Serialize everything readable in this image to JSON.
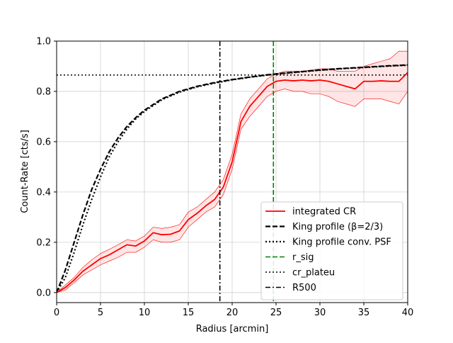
{
  "chart_data": {
    "type": "line",
    "title": "",
    "xlabel": "Radius [arcmin]",
    "ylabel": "Count-Rate [cts/s]",
    "xlim": [
      0,
      40
    ],
    "ylim": [
      -0.04,
      1.0
    ],
    "xticks": [
      0,
      5,
      10,
      15,
      20,
      25,
      30,
      35,
      40
    ],
    "yticks": [
      0.0,
      0.2,
      0.4,
      0.6,
      0.8,
      1.0
    ],
    "xtick_labels": [
      "0",
      "5",
      "10",
      "15",
      "20",
      "25",
      "30",
      "35",
      "40"
    ],
    "ytick_labels": [
      "0.0",
      "0.2",
      "0.4",
      "0.6",
      "0.8",
      "1.0"
    ],
    "grid": true,
    "legend_position": "lower-right",
    "series": [
      {
        "name": "integrated CR",
        "style": "solid",
        "color": "#ff0000",
        "x": [
          0,
          1,
          2,
          3,
          4,
          5,
          6,
          7,
          8,
          9,
          10,
          11,
          12,
          13,
          14,
          15,
          16,
          17,
          18,
          19,
          20,
          21,
          22,
          23,
          24,
          25,
          26,
          27,
          28,
          29,
          30,
          31,
          32,
          33,
          34,
          35,
          36,
          37,
          38,
          39,
          40
        ],
        "y": [
          0.0,
          0.02,
          0.05,
          0.085,
          0.11,
          0.135,
          0.15,
          0.17,
          0.19,
          0.185,
          0.205,
          0.238,
          0.23,
          0.232,
          0.245,
          0.29,
          0.315,
          0.345,
          0.37,
          0.42,
          0.52,
          0.68,
          0.74,
          0.78,
          0.82,
          0.84,
          0.845,
          0.842,
          0.845,
          0.842,
          0.845,
          0.84,
          0.83,
          0.82,
          0.81,
          0.84,
          0.84,
          0.842,
          0.84,
          0.84,
          0.875
        ],
        "y_upper": [
          0.0,
          0.03,
          0.06,
          0.1,
          0.13,
          0.155,
          0.172,
          0.19,
          0.21,
          0.205,
          0.225,
          0.26,
          0.255,
          0.26,
          0.27,
          0.32,
          0.34,
          0.37,
          0.4,
          0.45,
          0.55,
          0.71,
          0.77,
          0.81,
          0.85,
          0.87,
          0.88,
          0.88,
          0.88,
          0.885,
          0.89,
          0.89,
          0.88,
          0.88,
          0.88,
          0.9,
          0.91,
          0.92,
          0.93,
          0.96,
          0.96
        ],
        "y_lower": [
          0.0,
          0.01,
          0.04,
          0.07,
          0.09,
          0.11,
          0.125,
          0.14,
          0.16,
          0.16,
          0.18,
          0.21,
          0.2,
          0.2,
          0.21,
          0.26,
          0.29,
          0.32,
          0.34,
          0.39,
          0.49,
          0.65,
          0.7,
          0.74,
          0.78,
          0.8,
          0.81,
          0.8,
          0.8,
          0.79,
          0.79,
          0.78,
          0.76,
          0.75,
          0.74,
          0.77,
          0.77,
          0.77,
          0.76,
          0.75,
          0.8
        ]
      },
      {
        "name": "King profile (β=2/3)",
        "style": "dashed",
        "color": "#000000",
        "x": [
          0,
          1,
          2,
          3,
          4,
          5,
          6,
          7,
          8,
          9,
          10,
          12,
          14,
          16,
          18,
          20,
          22,
          24,
          26,
          28,
          30,
          32,
          34,
          36,
          38,
          40
        ],
        "y": [
          0.0,
          0.09,
          0.2,
          0.31,
          0.41,
          0.49,
          0.56,
          0.615,
          0.66,
          0.695,
          0.725,
          0.77,
          0.8,
          0.82,
          0.835,
          0.847,
          0.857,
          0.866,
          0.873,
          0.879,
          0.885,
          0.89,
          0.894,
          0.898,
          0.902,
          0.905
        ]
      },
      {
        "name": "King profile conv. PSF",
        "style": "dotted",
        "color": "#000000",
        "x": [
          0,
          1,
          2,
          3,
          4,
          5,
          6,
          7,
          8,
          9,
          10,
          12,
          14,
          16,
          18,
          20,
          22,
          24,
          26,
          28,
          30,
          32,
          34,
          36,
          38,
          40
        ],
        "y": [
          0.0,
          0.06,
          0.16,
          0.27,
          0.37,
          0.46,
          0.54,
          0.6,
          0.65,
          0.69,
          0.72,
          0.767,
          0.797,
          0.818,
          0.833,
          0.846,
          0.856,
          0.865,
          0.872,
          0.878,
          0.884,
          0.889,
          0.893,
          0.897,
          0.901,
          0.904
        ]
      }
    ],
    "vlines": [
      {
        "name": "r_sig",
        "x": 24.7,
        "style": "dashed",
        "color": "#008000"
      },
      {
        "name": "R500",
        "x": 18.6,
        "style": "dashdot",
        "color": "#000000"
      }
    ],
    "hlines": [
      {
        "name": "cr_plateu",
        "y": 0.865,
        "style": "dotted",
        "color": "#000000"
      }
    ]
  }
}
